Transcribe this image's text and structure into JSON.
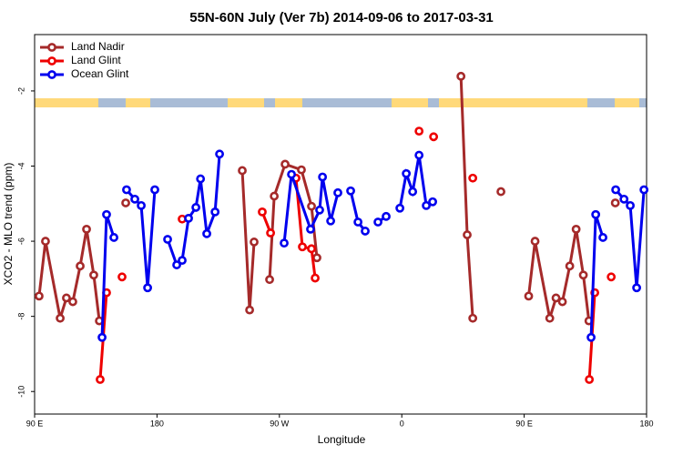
{
  "chart_data": {
    "type": "line",
    "title": "55N-60N July (Ver 7b)   2014-09-06 to 2017-03-31",
    "x_label": "Longitude",
    "y_label": "XCO2 - MLO trend (ppm)",
    "xlim": [
      90,
      540
    ],
    "ylim": [
      -10.6,
      -0.5
    ],
    "xticks": [
      {
        "value": 90,
        "label": "90 E"
      },
      180,
      {
        "value": 270,
        "label": "90 W"
      },
      {
        "value": 360,
        "label": "0"
      },
      {
        "value": 450,
        "label": "90 E"
      },
      {
        "value": 540,
        "label": "180"
      }
    ],
    "yticks": [
      -10,
      -8,
      -6,
      -4,
      -2
    ],
    "legend": "top-left",
    "series": [
      {
        "name": "Land Nadir",
        "color": "#a52a2a",
        "x": [
          93.3,
          98.0,
          108.8,
          113.4,
          118.1,
          123.5,
          128.2,
          133.5,
          137.6,
          null,
          157.0,
          null,
          242.7,
          248.1,
          251.4,
          null,
          262.8,
          266.2,
          274.2,
          286.2,
          293.6,
          297.6,
          null,
          403.5,
          408.1,
          412.2,
          null,
          432.9,
          null,
          453.3,
          458.0,
          468.8,
          473.4,
          478.1,
          483.5,
          488.2,
          493.5,
          497.6,
          null,
          517.0
        ],
        "values": [
          -7.46,
          -6.0,
          -8.05,
          -7.51,
          -7.61,
          -6.66,
          -5.68,
          -6.9,
          -8.12,
          null,
          -4.98,
          null,
          -4.12,
          -7.83,
          -6.02,
          null,
          -7.02,
          -4.8,
          -3.95,
          -4.1,
          -5.07,
          -6.44,
          null,
          -1.61,
          -5.83,
          -8.05,
          null,
          -4.68,
          null,
          -7.46,
          -6.0,
          -8.05,
          -7.51,
          -7.61,
          -6.66,
          -5.68,
          -6.9,
          -8.12,
          null,
          -4.98
        ]
      },
      {
        "name": "Land Glint",
        "color": "#ee0000",
        "x": [
          138.2,
          142.9,
          null,
          154.3,
          null,
          198.5,
          null,
          257.4,
          263.5,
          null,
          282.2,
          286.9,
          293.6,
          296.3,
          null,
          372.7,
          null,
          383.4,
          null,
          412.2,
          null,
          497.9,
          501.9,
          null,
          514.0
        ],
        "values": [
          -9.68,
          -7.37,
          null,
          -6.95,
          null,
          -5.41,
          null,
          -5.22,
          -5.78,
          null,
          -4.32,
          -6.15,
          -6.2,
          -6.98,
          null,
          -3.07,
          null,
          -3.22,
          null,
          -4.32,
          null,
          -9.68,
          -7.37,
          null,
          -6.95
        ]
      },
      {
        "name": "Ocean Glint",
        "color": "#0000ee",
        "x": [
          139.6,
          142.9,
          148.3,
          null,
          157.6,
          163.7,
          168.4,
          173.1,
          178.4,
          null,
          187.8,
          194.5,
          198.5,
          203.2,
          208.6,
          212.0,
          216.6,
          222.7,
          226.0,
          null,
          273.5,
          278.9,
          292.9,
          299.6,
          301.7,
          307.7,
          313.0,
          null,
          322.4,
          327.8,
          333.1,
          null,
          342.5,
          348.5,
          null,
          358.6,
          363.3,
          368.0,
          372.7,
          378.0,
          382.7,
          null,
          499.2,
          502.6,
          507.9,
          null,
          517.3,
          523.4,
          528.0,
          532.7,
          538.1
        ],
        "values": [
          -8.56,
          -5.29,
          -5.9,
          null,
          -4.63,
          -4.88,
          -5.05,
          -7.24,
          -4.63,
          null,
          -5.95,
          -6.63,
          -6.51,
          -5.39,
          -5.1,
          -4.34,
          -5.8,
          -5.22,
          -3.68,
          null,
          -6.05,
          -4.22,
          -5.68,
          -5.17,
          -4.29,
          -5.46,
          -4.71,
          null,
          -4.66,
          -5.49,
          -5.73,
          null,
          -5.49,
          -5.34,
          null,
          -5.12,
          -4.2,
          -4.68,
          -3.71,
          -5.05,
          -4.95,
          null,
          -8.56,
          -5.29,
          -5.9,
          null,
          -4.63,
          -4.88,
          -5.05,
          -7.24,
          -4.63
        ]
      }
    ]
  }
}
